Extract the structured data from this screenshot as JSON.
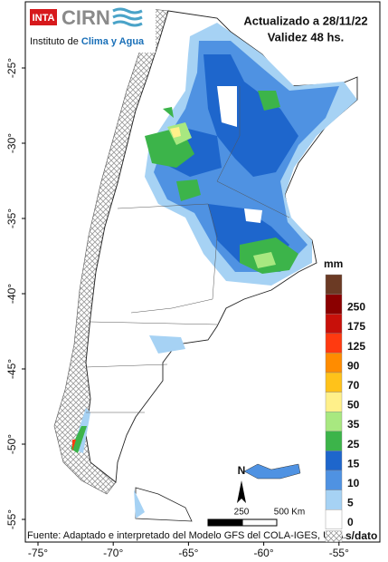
{
  "header": {
    "logo_mark": "INTA",
    "logo_name": "CIRN",
    "institute_prefix": "Instituto de ",
    "institute_highlight": "Clima y Agua",
    "updated": "Actualizado a 28/11/22",
    "validity": "Validez 48 hs."
  },
  "axes": {
    "lat_ticks": [
      {
        "value": -25,
        "label": "-25°"
      },
      {
        "value": -30,
        "label": "-30°"
      },
      {
        "value": -35,
        "label": "-35°"
      },
      {
        "value": -40,
        "label": "-40°"
      },
      {
        "value": -45,
        "label": "-45°"
      },
      {
        "value": -50,
        "label": "-50°"
      },
      {
        "value": -55,
        "label": "-55°"
      }
    ],
    "lon_ticks": [
      {
        "value": -75,
        "label": "-75°"
      },
      {
        "value": -70,
        "label": "-70°"
      },
      {
        "value": -65,
        "label": "-65°"
      },
      {
        "value": -60,
        "label": "-60°"
      },
      {
        "value": -55,
        "label": "-55°"
      }
    ]
  },
  "legend": {
    "title": "mm",
    "items": [
      {
        "label": null,
        "color": "#6b3a24"
      },
      {
        "label": "250",
        "color": "#8b0000"
      },
      {
        "label": "175",
        "color": "#c8100a"
      },
      {
        "label": "125",
        "color": "#ff3a10"
      },
      {
        "label": "90",
        "color": "#ff8c00"
      },
      {
        "label": "70",
        "color": "#ffc21a"
      },
      {
        "label": "50",
        "color": "#fff08a"
      },
      {
        "label": "35",
        "color": "#a8e880"
      },
      {
        "label": "25",
        "color": "#3cb44a"
      },
      {
        "label": "15",
        "color": "#1e66cc"
      },
      {
        "label": "10",
        "color": "#4f92e2"
      },
      {
        "label": "5",
        "color": "#a6d2f4"
      },
      {
        "label": "0",
        "color": "#ffffff"
      }
    ],
    "no_data": "s/dato"
  },
  "scale": {
    "north": "N",
    "mid": "250",
    "end": "500 Km"
  },
  "footer": "Fuente: Adaptado e interpretado del Modelo GFS del COLA-IGES, USA."
}
